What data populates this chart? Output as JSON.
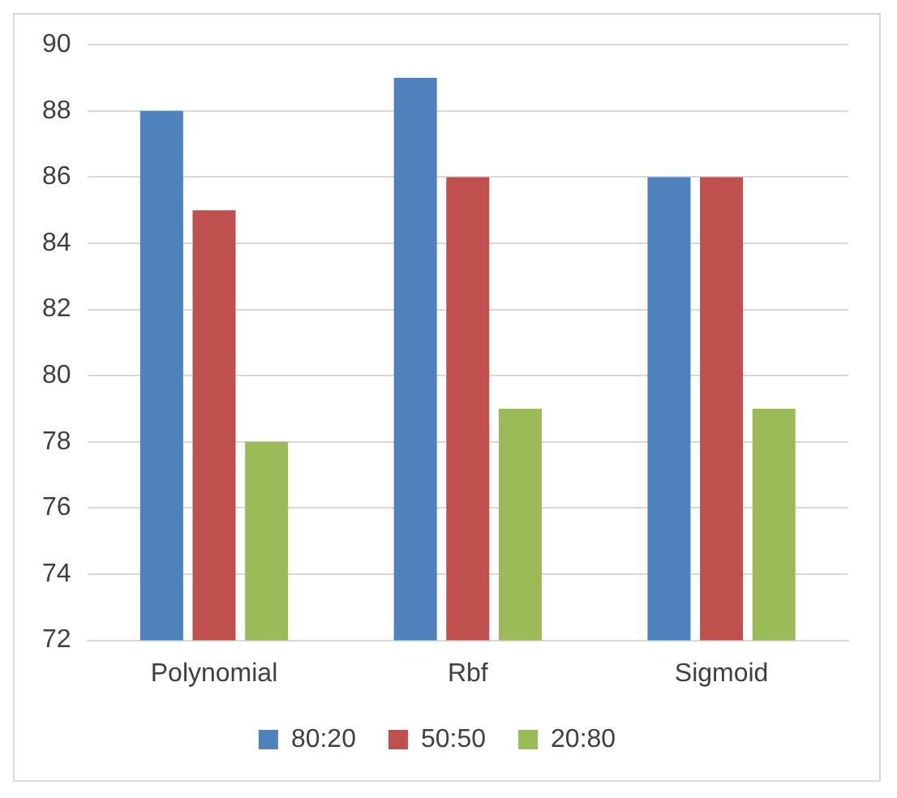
{
  "chart_data": {
    "type": "bar",
    "categories": [
      "Polynomial",
      "Rbf",
      "Sigmoid"
    ],
    "series": [
      {
        "name": "80:20",
        "color": "#4f81bd",
        "values": [
          88,
          89,
          86
        ]
      },
      {
        "name": "50:50",
        "color": "#c0504d",
        "values": [
          85,
          86,
          86
        ]
      },
      {
        "name": "20:80",
        "color": "#9bbb59",
        "values": [
          78,
          79,
          79
        ]
      }
    ],
    "ylim": [
      72,
      90
    ],
    "yticks": [
      72,
      74,
      76,
      78,
      80,
      82,
      84,
      86,
      88,
      90
    ],
    "grid": "y",
    "legend": "bottom"
  }
}
